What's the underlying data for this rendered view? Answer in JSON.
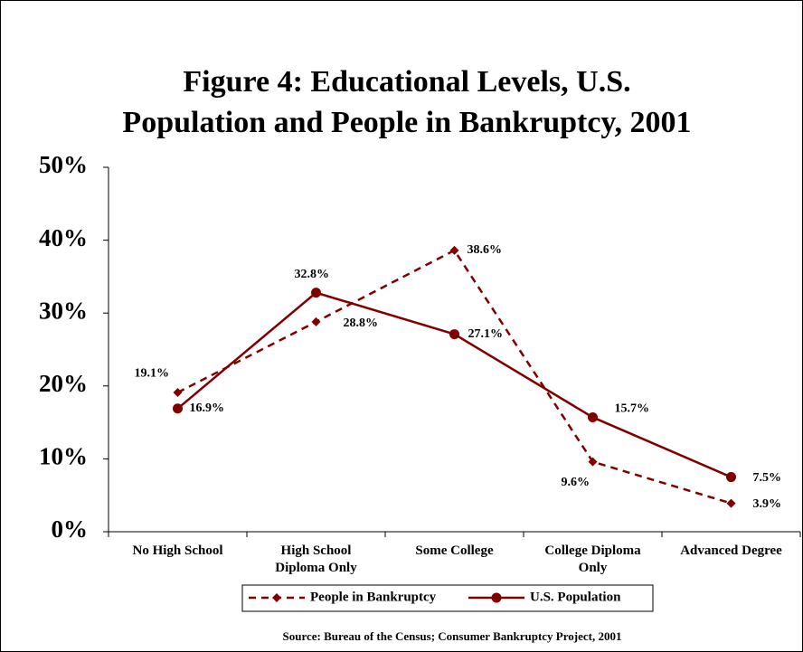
{
  "chart_data": {
    "type": "line",
    "title": "Figure 4: Educational Levels, U.S.\nPopulation and People in Bankruptcy, 2001",
    "categories": [
      "No High School",
      "High School\nDiploma Only",
      "Some College",
      "College Diploma\nOnly",
      "Advanced Degree"
    ],
    "series": [
      {
        "name": "People in Bankruptcy",
        "color": "#800000",
        "dash": true,
        "marker": "diamond",
        "values": [
          19.1,
          28.8,
          38.6,
          9.6,
          3.9
        ],
        "value_labels": [
          "19.1%",
          "28.8%",
          "38.6%",
          "9.6%",
          "3.9%"
        ]
      },
      {
        "name": "U.S. Population",
        "color": "#800000",
        "dash": false,
        "marker": "circle",
        "values": [
          16.9,
          32.8,
          27.1,
          15.7,
          7.5
        ],
        "value_labels": [
          "16.9%",
          "32.8%",
          "27.1%",
          "15.7%",
          "7.5%"
        ]
      }
    ],
    "ylim": [
      0,
      50
    ],
    "yticks": [
      {
        "value": 0,
        "label": "0%"
      },
      {
        "value": 10,
        "label": "10%"
      },
      {
        "value": 20,
        "label": "20%"
      },
      {
        "value": 30,
        "label": "30%"
      },
      {
        "value": 40,
        "label": "40%"
      },
      {
        "value": 50,
        "label": "50%"
      }
    ],
    "grid": false,
    "legend": "bottom",
    "source": "Source: Bureau of the Census; Consumer Bankruptcy Project, 2001"
  }
}
